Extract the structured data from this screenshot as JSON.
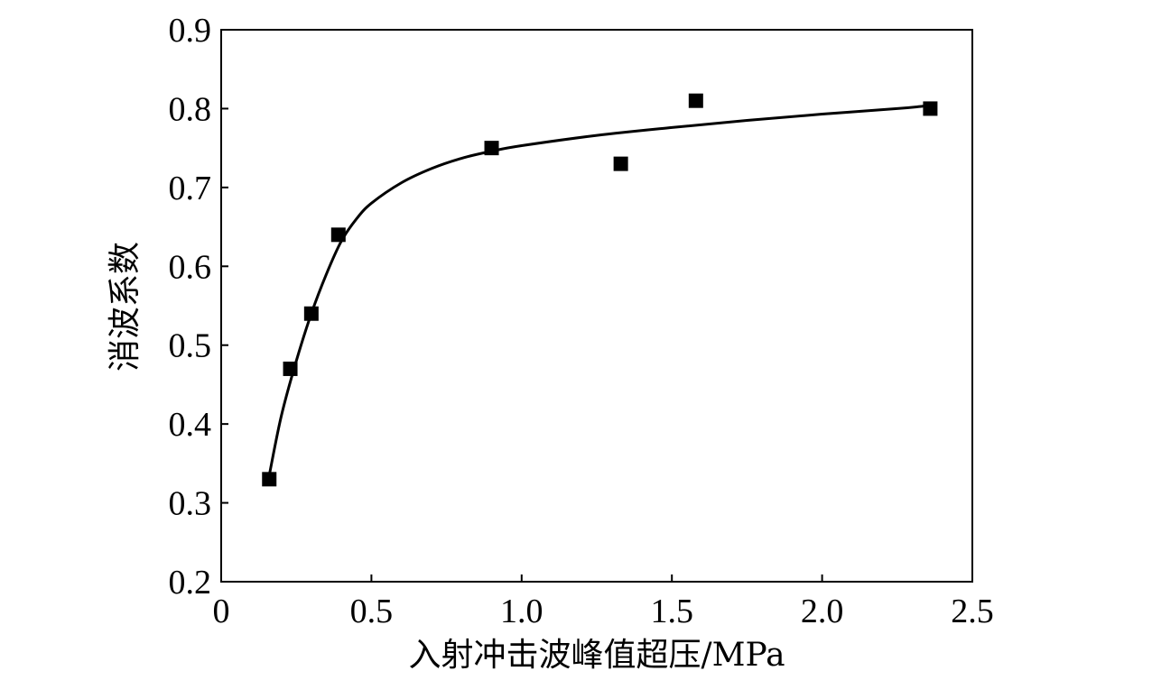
{
  "chart_data": {
    "type": "scatter",
    "xlabel": "入射冲击波峰值超压/MPa",
    "ylabel": "消波系数",
    "xlim": [
      0,
      2.5
    ],
    "ylim": [
      0.2,
      0.9
    ],
    "x_ticks": {
      "values": [
        0,
        0.5,
        1.0,
        1.5,
        2.0,
        2.5
      ],
      "labels": [
        "0",
        "0.5",
        "1.0",
        "1.5",
        "2.0",
        "2.5"
      ]
    },
    "y_ticks": {
      "values": [
        0.2,
        0.3,
        0.4,
        0.5,
        0.6,
        0.7,
        0.8,
        0.9
      ],
      "labels": [
        "0.2",
        "0.3",
        "0.4",
        "0.5",
        "0.6",
        "0.7",
        "0.8",
        "0.9"
      ]
    },
    "grid": false,
    "legend": "none",
    "series": [
      {
        "mark": "scatter",
        "marker": "square",
        "color": "#000000",
        "x": [
          0.16,
          0.23,
          0.3,
          0.39,
          0.9,
          1.33,
          1.58,
          2.36
        ],
        "y": [
          0.33,
          0.47,
          0.54,
          0.64,
          0.75,
          0.73,
          0.81,
          0.8
        ]
      },
      {
        "mark": "line",
        "color": "#000000",
        "x": [
          0.16,
          0.2,
          0.25,
          0.3,
          0.35,
          0.4,
          0.45,
          0.5,
          0.6,
          0.7,
          0.8,
          0.9,
          1.0,
          1.25,
          1.5,
          1.75,
          2.0,
          2.25,
          2.36
        ],
        "y": [
          0.335,
          0.41,
          0.48,
          0.54,
          0.59,
          0.632,
          0.66,
          0.68,
          0.706,
          0.724,
          0.737,
          0.746,
          0.753,
          0.766,
          0.776,
          0.785,
          0.793,
          0.8,
          0.804
        ]
      }
    ]
  }
}
